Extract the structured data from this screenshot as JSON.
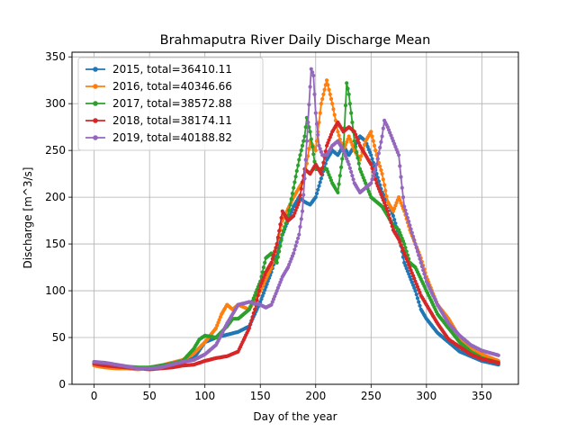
{
  "chart_data": {
    "type": "line",
    "title": "Brahmaputra River Daily Discharge Mean",
    "xlabel": "Day of the year",
    "ylabel": "Discharge [m^3/s]",
    "xlim": [
      -20,
      383
    ],
    "ylim": [
      0,
      355
    ],
    "xticks": [
      0,
      50,
      100,
      150,
      200,
      250,
      300,
      350
    ],
    "yticks": [
      0,
      50,
      100,
      150,
      200,
      250,
      300,
      350
    ],
    "grid": true,
    "legend_position": "top-left",
    "marker": "dot",
    "series": [
      {
        "name": "2015, total=36410.11",
        "color": "#1f77b4",
        "points": [
          [
            0,
            22
          ],
          [
            10,
            21
          ],
          [
            20,
            20
          ],
          [
            30,
            18
          ],
          [
            40,
            17
          ],
          [
            50,
            17
          ],
          [
            60,
            19
          ],
          [
            70,
            21
          ],
          [
            80,
            23
          ],
          [
            90,
            28
          ],
          [
            100,
            45
          ],
          [
            110,
            50
          ],
          [
            120,
            53
          ],
          [
            130,
            56
          ],
          [
            140,
            62
          ],
          [
            150,
            88
          ],
          [
            160,
            120
          ],
          [
            170,
            160
          ],
          [
            180,
            190
          ],
          [
            185,
            200
          ],
          [
            190,
            195
          ],
          [
            195,
            192
          ],
          [
            200,
            200
          ],
          [
            205,
            220
          ],
          [
            210,
            240
          ],
          [
            215,
            250
          ],
          [
            220,
            245
          ],
          [
            225,
            255
          ],
          [
            230,
            245
          ],
          [
            235,
            255
          ],
          [
            240,
            265
          ],
          [
            245,
            260
          ],
          [
            250,
            245
          ],
          [
            255,
            225
          ],
          [
            260,
            205
          ],
          [
            265,
            195
          ],
          [
            270,
            180
          ],
          [
            275,
            160
          ],
          [
            280,
            130
          ],
          [
            285,
            115
          ],
          [
            290,
            100
          ],
          [
            295,
            80
          ],
          [
            300,
            70
          ],
          [
            310,
            55
          ],
          [
            320,
            45
          ],
          [
            330,
            35
          ],
          [
            340,
            30
          ],
          [
            350,
            25
          ],
          [
            365,
            21
          ]
        ]
      },
      {
        "name": "2016, total=40346.66",
        "color": "#ff7f0e",
        "points": [
          [
            0,
            20
          ],
          [
            10,
            18
          ],
          [
            20,
            17
          ],
          [
            30,
            17
          ],
          [
            40,
            16
          ],
          [
            50,
            18
          ],
          [
            60,
            20
          ],
          [
            70,
            23
          ],
          [
            80,
            26
          ],
          [
            90,
            33
          ],
          [
            100,
            45
          ],
          [
            110,
            60
          ],
          [
            115,
            75
          ],
          [
            120,
            85
          ],
          [
            125,
            80
          ],
          [
            130,
            85
          ],
          [
            140,
            80
          ],
          [
            150,
            100
          ],
          [
            160,
            125
          ],
          [
            170,
            175
          ],
          [
            180,
            200
          ],
          [
            185,
            210
          ],
          [
            190,
            220
          ],
          [
            195,
            260
          ],
          [
            200,
            250
          ],
          [
            205,
            300
          ],
          [
            210,
            325
          ],
          [
            215,
            300
          ],
          [
            220,
            270
          ],
          [
            225,
            250
          ],
          [
            230,
            265
          ],
          [
            235,
            250
          ],
          [
            240,
            240
          ],
          [
            245,
            260
          ],
          [
            250,
            270
          ],
          [
            255,
            245
          ],
          [
            260,
            225
          ],
          [
            265,
            195
          ],
          [
            270,
            185
          ],
          [
            275,
            200
          ],
          [
            280,
            185
          ],
          [
            285,
            165
          ],
          [
            290,
            150
          ],
          [
            295,
            135
          ],
          [
            300,
            115
          ],
          [
            310,
            85
          ],
          [
            320,
            70
          ],
          [
            330,
            50
          ],
          [
            340,
            40
          ],
          [
            350,
            32
          ],
          [
            365,
            25
          ]
        ]
      },
      {
        "name": "2017, total=38572.88",
        "color": "#2ca02c",
        "points": [
          [
            0,
            24
          ],
          [
            10,
            22
          ],
          [
            20,
            20
          ],
          [
            30,
            19
          ],
          [
            40,
            18
          ],
          [
            50,
            18
          ],
          [
            60,
            20
          ],
          [
            70,
            22
          ],
          [
            80,
            25
          ],
          [
            90,
            38
          ],
          [
            95,
            48
          ],
          [
            100,
            52
          ],
          [
            110,
            50
          ],
          [
            120,
            62
          ],
          [
            125,
            70
          ],
          [
            130,
            70
          ],
          [
            140,
            80
          ],
          [
            145,
            95
          ],
          [
            150,
            110
          ],
          [
            155,
            135
          ],
          [
            160,
            140
          ],
          [
            165,
            130
          ],
          [
            170,
            160
          ],
          [
            175,
            180
          ],
          [
            180,
            210
          ],
          [
            185,
            240
          ],
          [
            190,
            265
          ],
          [
            192,
            285
          ],
          [
            195,
            270
          ],
          [
            200,
            230
          ],
          [
            205,
            230
          ],
          [
            210,
            230
          ],
          [
            215,
            215
          ],
          [
            220,
            205
          ],
          [
            225,
            250
          ],
          [
            228,
            322
          ],
          [
            230,
            310
          ],
          [
            235,
            260
          ],
          [
            240,
            230
          ],
          [
            245,
            215
          ],
          [
            250,
            200
          ],
          [
            255,
            195
          ],
          [
            260,
            190
          ],
          [
            265,
            180
          ],
          [
            270,
            170
          ],
          [
            275,
            165
          ],
          [
            280,
            150
          ],
          [
            285,
            130
          ],
          [
            290,
            125
          ],
          [
            300,
            100
          ],
          [
            310,
            75
          ],
          [
            320,
            60
          ],
          [
            330,
            45
          ],
          [
            340,
            35
          ],
          [
            350,
            28
          ],
          [
            365,
            23
          ]
        ]
      },
      {
        "name": "2018, total=38174.11",
        "color": "#d62728",
        "points": [
          [
            0,
            22
          ],
          [
            10,
            20
          ],
          [
            20,
            19
          ],
          [
            30,
            18
          ],
          [
            40,
            17
          ],
          [
            50,
            16
          ],
          [
            60,
            17
          ],
          [
            70,
            18
          ],
          [
            80,
            20
          ],
          [
            90,
            21
          ],
          [
            100,
            25
          ],
          [
            110,
            28
          ],
          [
            120,
            30
          ],
          [
            130,
            35
          ],
          [
            140,
            60
          ],
          [
            145,
            80
          ],
          [
            150,
            105
          ],
          [
            155,
            120
          ],
          [
            160,
            130
          ],
          [
            165,
            150
          ],
          [
            170,
            185
          ],
          [
            175,
            175
          ],
          [
            180,
            180
          ],
          [
            185,
            195
          ],
          [
            190,
            230
          ],
          [
            195,
            225
          ],
          [
            200,
            235
          ],
          [
            205,
            225
          ],
          [
            210,
            255
          ],
          [
            215,
            270
          ],
          [
            220,
            280
          ],
          [
            225,
            270
          ],
          [
            230,
            275
          ],
          [
            235,
            270
          ],
          [
            240,
            255
          ],
          [
            245,
            245
          ],
          [
            250,
            235
          ],
          [
            255,
            215
          ],
          [
            260,
            200
          ],
          [
            265,
            185
          ],
          [
            270,
            165
          ],
          [
            275,
            155
          ],
          [
            280,
            140
          ],
          [
            285,
            125
          ],
          [
            290,
            110
          ],
          [
            295,
            95
          ],
          [
            300,
            85
          ],
          [
            310,
            65
          ],
          [
            320,
            48
          ],
          [
            330,
            40
          ],
          [
            340,
            32
          ],
          [
            350,
            27
          ],
          [
            365,
            23
          ]
        ]
      },
      {
        "name": "2019, total=40188.82",
        "color": "#9467bd",
        "points": [
          [
            0,
            24
          ],
          [
            10,
            23
          ],
          [
            20,
            21
          ],
          [
            30,
            19
          ],
          [
            40,
            17
          ],
          [
            50,
            17
          ],
          [
            60,
            18
          ],
          [
            70,
            21
          ],
          [
            80,
            24
          ],
          [
            90,
            26
          ],
          [
            100,
            32
          ],
          [
            110,
            42
          ],
          [
            120,
            65
          ],
          [
            130,
            85
          ],
          [
            140,
            88
          ],
          [
            150,
            85
          ],
          [
            155,
            82
          ],
          [
            160,
            85
          ],
          [
            165,
            100
          ],
          [
            170,
            115
          ],
          [
            175,
            125
          ],
          [
            180,
            140
          ],
          [
            185,
            160
          ],
          [
            188,
            185
          ],
          [
            190,
            220
          ],
          [
            193,
            280
          ],
          [
            196,
            337
          ],
          [
            198,
            330
          ],
          [
            200,
            290
          ],
          [
            203,
            255
          ],
          [
            206,
            245
          ],
          [
            210,
            245
          ],
          [
            215,
            255
          ],
          [
            220,
            260
          ],
          [
            225,
            250
          ],
          [
            230,
            235
          ],
          [
            235,
            215
          ],
          [
            240,
            205
          ],
          [
            245,
            210
          ],
          [
            250,
            215
          ],
          [
            255,
            235
          ],
          [
            260,
            265
          ],
          [
            262,
            282
          ],
          [
            265,
            275
          ],
          [
            270,
            260
          ],
          [
            275,
            245
          ],
          [
            278,
            210
          ],
          [
            280,
            190
          ],
          [
            285,
            170
          ],
          [
            290,
            150
          ],
          [
            295,
            130
          ],
          [
            300,
            110
          ],
          [
            310,
            85
          ],
          [
            320,
            65
          ],
          [
            330,
            52
          ],
          [
            340,
            42
          ],
          [
            350,
            36
          ],
          [
            365,
            31
          ]
        ]
      }
    ]
  }
}
